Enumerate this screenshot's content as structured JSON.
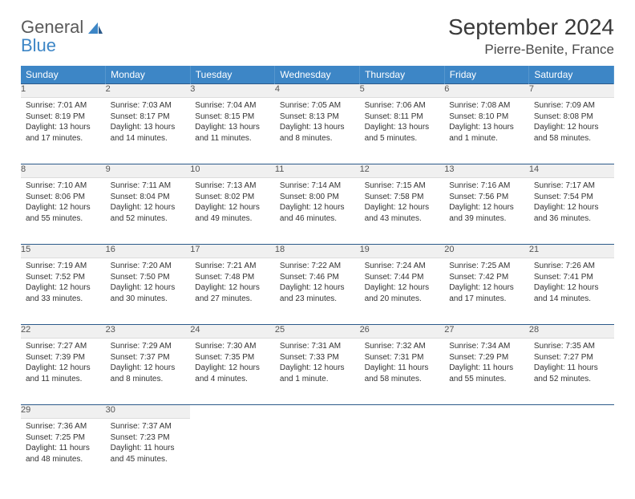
{
  "brand": {
    "name1": "General",
    "name2": "Blue"
  },
  "title": "September 2024",
  "location": "Pierre-Benite, France",
  "accent_color": "#3d86c6",
  "header_text_color": "#ffffff",
  "daynum_bg": "#f0f0f0",
  "rule_color": "#2c5a8a",
  "bg_color": "#ffffff",
  "text_color": "#333333",
  "font_family": "Arial",
  "title_fontsize": 28,
  "location_fontsize": 17,
  "header_fontsize": 12,
  "daynum_fontsize": 11,
  "cell_fontsize": 10,
  "day_labels": [
    "Sunday",
    "Monday",
    "Tuesday",
    "Wednesday",
    "Thursday",
    "Friday",
    "Saturday"
  ],
  "labels": {
    "sunrise": "Sunrise:",
    "sunset": "Sunset:",
    "daylight": "Daylight:"
  },
  "weeks": [
    [
      {
        "n": "1",
        "sunrise": "7:01 AM",
        "sunset": "8:19 PM",
        "daylight": "13 hours and 17 minutes."
      },
      {
        "n": "2",
        "sunrise": "7:03 AM",
        "sunset": "8:17 PM",
        "daylight": "13 hours and 14 minutes."
      },
      {
        "n": "3",
        "sunrise": "7:04 AM",
        "sunset": "8:15 PM",
        "daylight": "13 hours and 11 minutes."
      },
      {
        "n": "4",
        "sunrise": "7:05 AM",
        "sunset": "8:13 PM",
        "daylight": "13 hours and 8 minutes."
      },
      {
        "n": "5",
        "sunrise": "7:06 AM",
        "sunset": "8:11 PM",
        "daylight": "13 hours and 5 minutes."
      },
      {
        "n": "6",
        "sunrise": "7:08 AM",
        "sunset": "8:10 PM",
        "daylight": "13 hours and 1 minute."
      },
      {
        "n": "7",
        "sunrise": "7:09 AM",
        "sunset": "8:08 PM",
        "daylight": "12 hours and 58 minutes."
      }
    ],
    [
      {
        "n": "8",
        "sunrise": "7:10 AM",
        "sunset": "8:06 PM",
        "daylight": "12 hours and 55 minutes."
      },
      {
        "n": "9",
        "sunrise": "7:11 AM",
        "sunset": "8:04 PM",
        "daylight": "12 hours and 52 minutes."
      },
      {
        "n": "10",
        "sunrise": "7:13 AM",
        "sunset": "8:02 PM",
        "daylight": "12 hours and 49 minutes."
      },
      {
        "n": "11",
        "sunrise": "7:14 AM",
        "sunset": "8:00 PM",
        "daylight": "12 hours and 46 minutes."
      },
      {
        "n": "12",
        "sunrise": "7:15 AM",
        "sunset": "7:58 PM",
        "daylight": "12 hours and 43 minutes."
      },
      {
        "n": "13",
        "sunrise": "7:16 AM",
        "sunset": "7:56 PM",
        "daylight": "12 hours and 39 minutes."
      },
      {
        "n": "14",
        "sunrise": "7:17 AM",
        "sunset": "7:54 PM",
        "daylight": "12 hours and 36 minutes."
      }
    ],
    [
      {
        "n": "15",
        "sunrise": "7:19 AM",
        "sunset": "7:52 PM",
        "daylight": "12 hours and 33 minutes."
      },
      {
        "n": "16",
        "sunrise": "7:20 AM",
        "sunset": "7:50 PM",
        "daylight": "12 hours and 30 minutes."
      },
      {
        "n": "17",
        "sunrise": "7:21 AM",
        "sunset": "7:48 PM",
        "daylight": "12 hours and 27 minutes."
      },
      {
        "n": "18",
        "sunrise": "7:22 AM",
        "sunset": "7:46 PM",
        "daylight": "12 hours and 23 minutes."
      },
      {
        "n": "19",
        "sunrise": "7:24 AM",
        "sunset": "7:44 PM",
        "daylight": "12 hours and 20 minutes."
      },
      {
        "n": "20",
        "sunrise": "7:25 AM",
        "sunset": "7:42 PM",
        "daylight": "12 hours and 17 minutes."
      },
      {
        "n": "21",
        "sunrise": "7:26 AM",
        "sunset": "7:41 PM",
        "daylight": "12 hours and 14 minutes."
      }
    ],
    [
      {
        "n": "22",
        "sunrise": "7:27 AM",
        "sunset": "7:39 PM",
        "daylight": "12 hours and 11 minutes."
      },
      {
        "n": "23",
        "sunrise": "7:29 AM",
        "sunset": "7:37 PM",
        "daylight": "12 hours and 8 minutes."
      },
      {
        "n": "24",
        "sunrise": "7:30 AM",
        "sunset": "7:35 PM",
        "daylight": "12 hours and 4 minutes."
      },
      {
        "n": "25",
        "sunrise": "7:31 AM",
        "sunset": "7:33 PM",
        "daylight": "12 hours and 1 minute."
      },
      {
        "n": "26",
        "sunrise": "7:32 AM",
        "sunset": "7:31 PM",
        "daylight": "11 hours and 58 minutes."
      },
      {
        "n": "27",
        "sunrise": "7:34 AM",
        "sunset": "7:29 PM",
        "daylight": "11 hours and 55 minutes."
      },
      {
        "n": "28",
        "sunrise": "7:35 AM",
        "sunset": "7:27 PM",
        "daylight": "11 hours and 52 minutes."
      }
    ],
    [
      {
        "n": "29",
        "sunrise": "7:36 AM",
        "sunset": "7:25 PM",
        "daylight": "11 hours and 48 minutes."
      },
      {
        "n": "30",
        "sunrise": "7:37 AM",
        "sunset": "7:23 PM",
        "daylight": "11 hours and 45 minutes."
      },
      null,
      null,
      null,
      null,
      null
    ]
  ]
}
